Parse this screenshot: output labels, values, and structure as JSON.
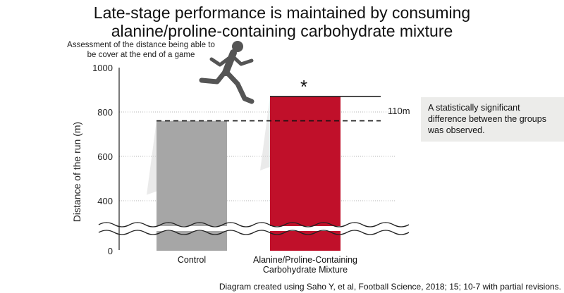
{
  "chart_data": {
    "type": "bar",
    "title": [
      "Late-stage performance is maintained by consuming",
      "alanine/proline-containing carbohydrate mixture"
    ],
    "subtitle": [
      "Assessment of the distance being able to",
      "be cover at the end of a game"
    ],
    "ylabel": "Distance of the run (m)",
    "xlabel": "",
    "ylim": [
      0,
      1000
    ],
    "axis_break": true,
    "yticks": [
      0,
      400,
      600,
      800,
      1000
    ],
    "grid": true,
    "categories": [
      [
        "Control"
      ],
      [
        "Alanine/Proline-Containing",
        "Carbohydrate Mixture"
      ]
    ],
    "values": [
      760,
      870
    ],
    "bar_colors": [
      "#a6a6a6",
      "#c0102a"
    ],
    "difference_label": "110m",
    "significance_marker": "*",
    "annotation": [
      "A statistically significant",
      "difference between the groups",
      "was observed."
    ],
    "source": "Diagram created using Saho Y, et al, Football Science, 2018; 15; 10-7 with partial revisions."
  }
}
